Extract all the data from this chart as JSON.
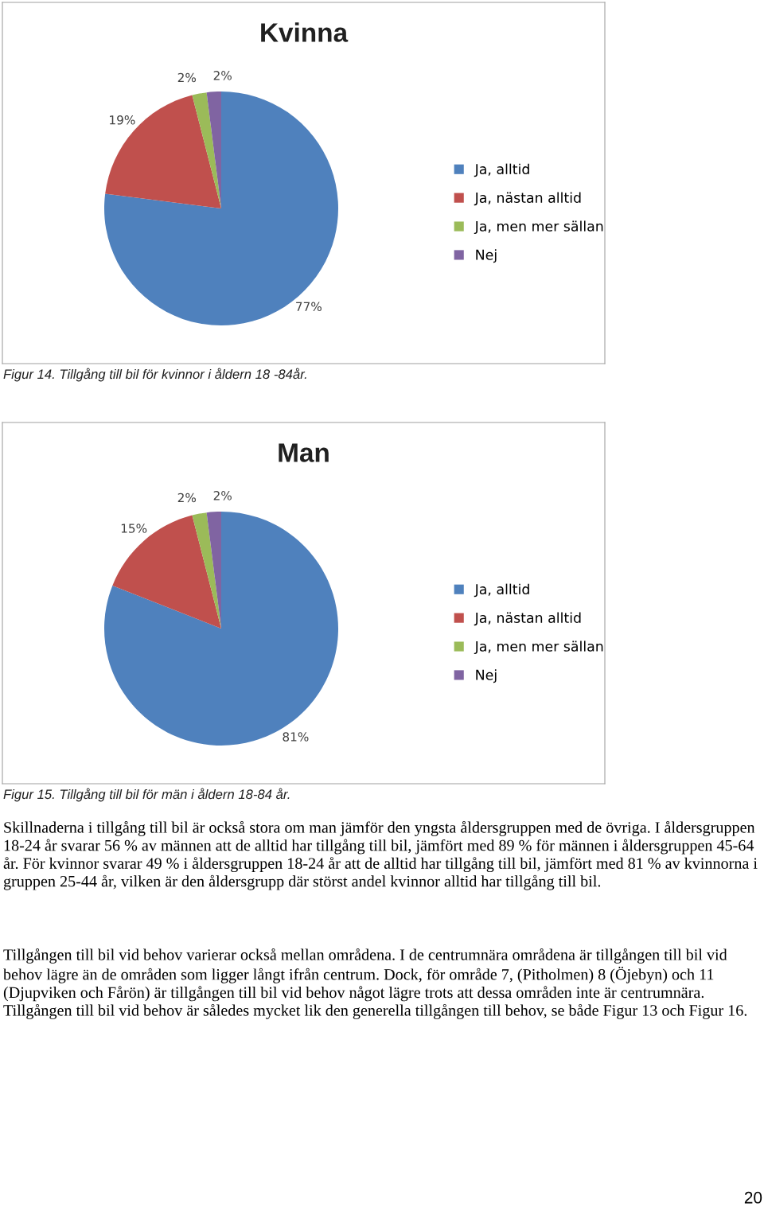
{
  "chart_data": [
    {
      "type": "pie",
      "title": "Kvinna",
      "categories": [
        "Ja, alltid",
        "Ja, nästan alltid",
        "Ja, men mer sällan",
        "Nej"
      ],
      "values": [
        77,
        19,
        2,
        2
      ],
      "value_labels": [
        "77%",
        "19%",
        "2%",
        "2%"
      ],
      "colors": [
        "#4f81bd",
        "#c0504d",
        "#9bbb59",
        "#8064a2"
      ],
      "legend": "right",
      "annotations": [
        "Figur 14. Tillgång till bil för kvinnor i åldern 18 -84år."
      ]
    },
    {
      "type": "pie",
      "title": "Man",
      "categories": [
        "Ja, alltid",
        "Ja, nästan alltid",
        "Ja, men mer sällan",
        "Nej"
      ],
      "values": [
        81,
        15,
        2,
        2
      ],
      "value_labels": [
        "81%",
        "15%",
        "2%",
        "2%"
      ],
      "colors": [
        "#4f81bd",
        "#c0504d",
        "#9bbb59",
        "#8064a2"
      ],
      "legend": "right",
      "annotations": [
        "Figur 15. Tillgång till bil för män i åldern 18-84 år.",
        "Skillnaderna i tillgång till bil är också stora om man jämför den yngsta åldersgruppen med de övriga. I åldersgruppen 18-24 år svarar 56 % av männen att de alltid har tillgång till bil, jämfört med 89 % för männen i åldersgruppen 45-64 år. För kvinnor svarar 49 % i åldersgruppen 18-24 år att de alltid har tillgång till bil, jämfört med 81 % av kvinnorna i gruppen 25-44 år, vilken är den åldersgrupp där störst andel kvinnor alltid har tillgång till bil.",
        "Tillgången till bil vid behov varierar också mellan områdena. I de centrumnära områdena är tillgången till bil vid behov lägre än de områden som ligger långt ifrån centrum. Dock, för område 7, (Pitholmen) 8 (Öjebyn) och 11 (Djupviken och Fårön) är tillgången till bil vid behov något lägre trots att dessa områden inte är centrumnära. Tillgången till bil vid behov är således mycket lik den generella tillgången till behov, se både Figur 13 och Figur 16.",
        "20"
      ]
    }
  ]
}
